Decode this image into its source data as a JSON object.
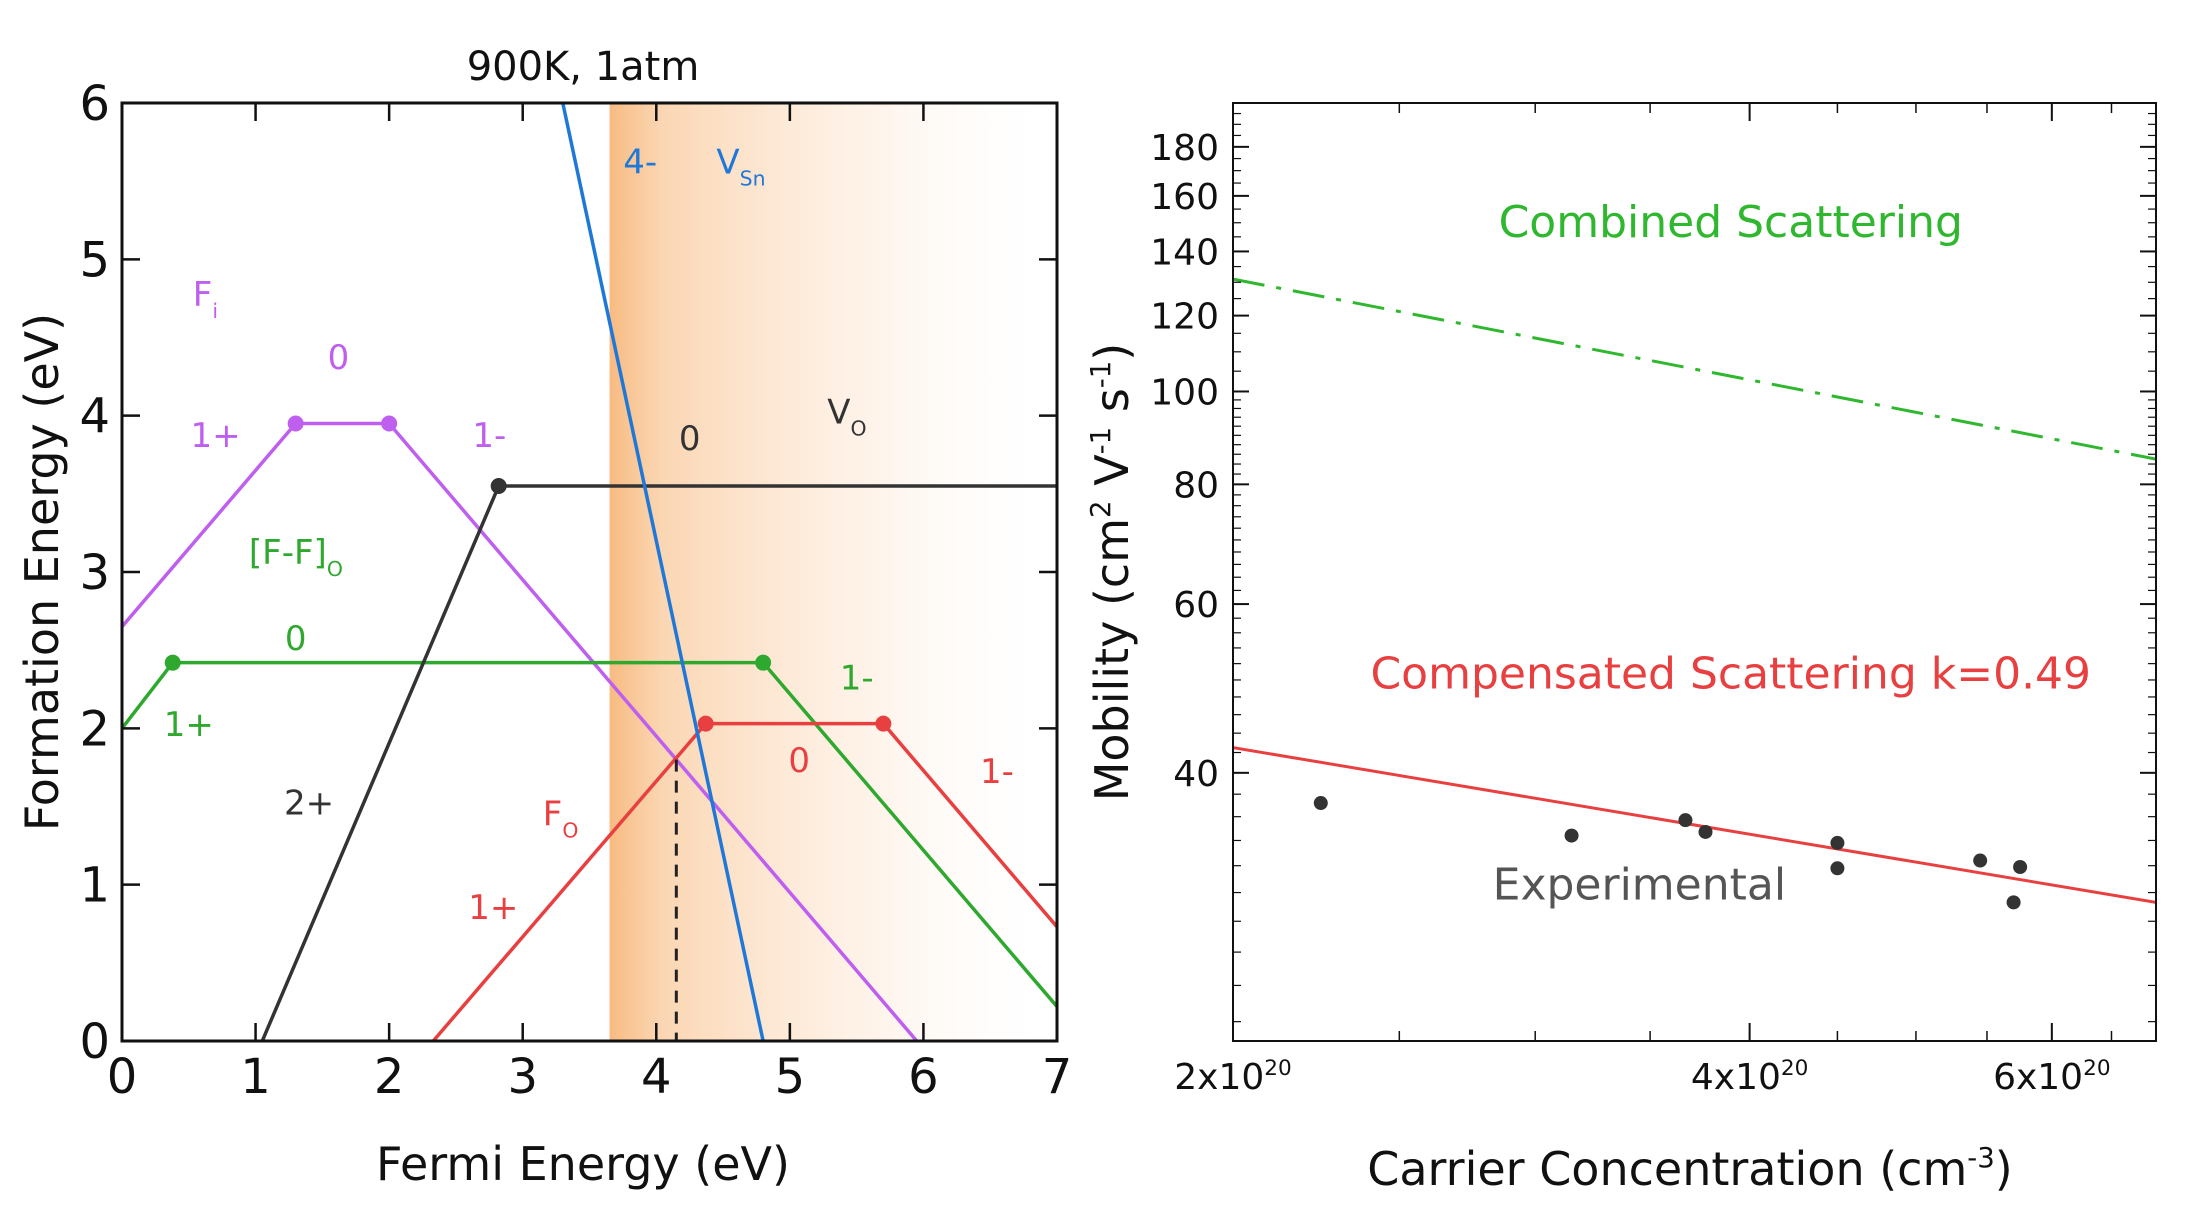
{
  "chart_data": [
    {
      "type": "line",
      "title": "900K, 1atm",
      "xlabel": "Fermi Energy (eV)",
      "ylabel": "Formation Energy (eV)",
      "xlim": [
        0,
        7
      ],
      "ylim": [
        0,
        6
      ],
      "xticks": [
        "0",
        "1",
        "2",
        "3",
        "4",
        "5",
        "6",
        "7"
      ],
      "yticks": [
        "0",
        "1",
        "2",
        "3",
        "4",
        "5",
        "6"
      ],
      "band_region": [
        3.65,
        7
      ],
      "dashed_line": {
        "x": 4.15,
        "y_top": 1.8
      },
      "colors": {
        "F_i": "#bf5fef",
        "FF_O": "#2fa82f",
        "V_O": "#333333",
        "F_O": "#e84040",
        "V_Sn": "#1f78d8",
        "band": "#f7b77a"
      },
      "series": [
        {
          "key": "F_i",
          "name": "F",
          "sub": "i",
          "x": [
            0,
            1.3,
            2.0,
            6.0
          ],
          "y": [
            2.65,
            3.95,
            3.95,
            -0.05
          ],
          "markers": [
            [
              1.3,
              3.95
            ],
            [
              2.0,
              3.95
            ]
          ],
          "labels": [
            {
              "text": "1+",
              "x": 0.7,
              "y": 3.8
            },
            {
              "text": "0",
              "x": 1.62,
              "y": 4.3
            },
            {
              "text": "1-",
              "x": 2.75,
              "y": 3.8
            }
          ]
        },
        {
          "key": "FF_O",
          "name": "[F-F]",
          "sub": "O",
          "x": [
            0,
            0.38,
            4.8,
            7.0
          ],
          "y": [
            2.0,
            2.42,
            2.42,
            0.22
          ],
          "markers": [
            [
              0.38,
              2.42
            ],
            [
              4.8,
              2.42
            ]
          ],
          "labels": [
            {
              "text": "1+",
              "x": 0.5,
              "y": 1.95
            },
            {
              "text": "0",
              "x": 1.3,
              "y": 2.5
            },
            {
              "text": "1-",
              "x": 5.5,
              "y": 2.25
            }
          ]
        },
        {
          "key": "V_O",
          "name": "V",
          "sub": "O",
          "x": [
            1.05,
            2.82,
            7.0
          ],
          "y": [
            0.0,
            3.55,
            3.55
          ],
          "markers": [
            [
              2.82,
              3.55
            ]
          ],
          "labels": [
            {
              "text": "2+",
              "x": 1.4,
              "y": 1.45
            },
            {
              "text": "0",
              "x": 4.25,
              "y": 3.78
            }
          ]
        },
        {
          "key": "F_O",
          "name": "F",
          "sub": "O",
          "x": [
            2.33,
            4.37,
            5.7,
            7.0
          ],
          "y": [
            0.0,
            2.03,
            2.03,
            0.73
          ],
          "markers": [
            [
              4.37,
              2.03
            ],
            [
              5.7,
              2.03
            ]
          ],
          "labels": [
            {
              "text": "1+",
              "x": 2.78,
              "y": 0.78
            },
            {
              "text": "0",
              "x": 5.07,
              "y": 1.72
            },
            {
              "text": "1-",
              "x": 6.55,
              "y": 1.65
            }
          ]
        },
        {
          "key": "V_Sn",
          "name": "V",
          "sub": "Sn",
          "x": [
            3.3,
            4.8
          ],
          "y": [
            6.0,
            0.0
          ],
          "markers": [],
          "labels": [
            {
              "text": "4-",
              "x": 3.88,
              "y": 5.55
            }
          ]
        }
      ],
      "series_names": [
        {
          "key": "F_i",
          "text": "F",
          "sub": "i",
          "x": 0.53,
          "y": 4.7
        },
        {
          "key": "FF_O",
          "text": "[F-F]",
          "sub": "O",
          "x": 0.95,
          "y": 3.05
        },
        {
          "key": "V_O",
          "text": "V",
          "sub": "O",
          "x": 5.28,
          "y": 3.95
        },
        {
          "key": "F_O",
          "text": "F",
          "sub": "O",
          "x": 3.15,
          "y": 1.38
        },
        {
          "key": "V_Sn",
          "text": "V",
          "sub": "Sn",
          "x": 4.45,
          "y": 5.55
        }
      ]
    },
    {
      "type": "line",
      "xlabel": "Carrier Concentration (cm",
      "xlabel_sup": "-3",
      "xlabel_end": ")",
      "ylabel": "Mobility (cm",
      "ylabel_parts": [
        "Mobility (cm",
        "2",
        " V",
        "-1",
        " s",
        "-1",
        ")"
      ],
      "xscale": "log",
      "yscale": "log",
      "xlim": [
        2e+20,
        6.9e+20
      ],
      "ylim": [
        21,
        200
      ],
      "xticks": [
        {
          "v": 2e+20,
          "base": "2x10",
          "exp": "20"
        },
        {
          "v": 4e+20,
          "base": "4x10",
          "exp": "20"
        },
        {
          "v": 6e+20,
          "base": "6x10",
          "exp": "20"
        }
      ],
      "yticks": [
        40,
        60,
        80,
        100,
        120,
        140,
        160,
        180
      ],
      "series": [
        {
          "name": "Combined Scattering",
          "style": "dashdot",
          "color": "#2fb82f",
          "x": [
            2e+20,
            6.9e+20
          ],
          "y": [
            131,
            85
          ],
          "label_pos": {
            "x": 3.9e+20,
            "y": 145
          }
        },
        {
          "name": "Compensated Scattering k=0.49",
          "style": "solid",
          "color": "#e84040",
          "x": [
            2e+20,
            6.9e+20
          ],
          "y": [
            42.5,
            29.3
          ],
          "label_pos": {
            "x": 3.9e+20,
            "y": 49
          }
        }
      ],
      "scatter": {
        "name": "Experimental",
        "color": "#333333",
        "label_pos": {
          "x": 3.45e+20,
          "y": 29.5
        },
        "points": [
          [
            2.25e+20,
            37.2
          ],
          [
            3.15e+20,
            34.4
          ],
          [
            3.67e+20,
            35.7
          ],
          [
            3.77e+20,
            34.7
          ],
          [
            4.5e+20,
            33.8
          ],
          [
            4.5e+20,
            31.8
          ],
          [
            5.45e+20,
            32.4
          ],
          [
            5.75e+20,
            31.9
          ],
          [
            5.7e+20,
            29.3
          ]
        ]
      }
    }
  ]
}
